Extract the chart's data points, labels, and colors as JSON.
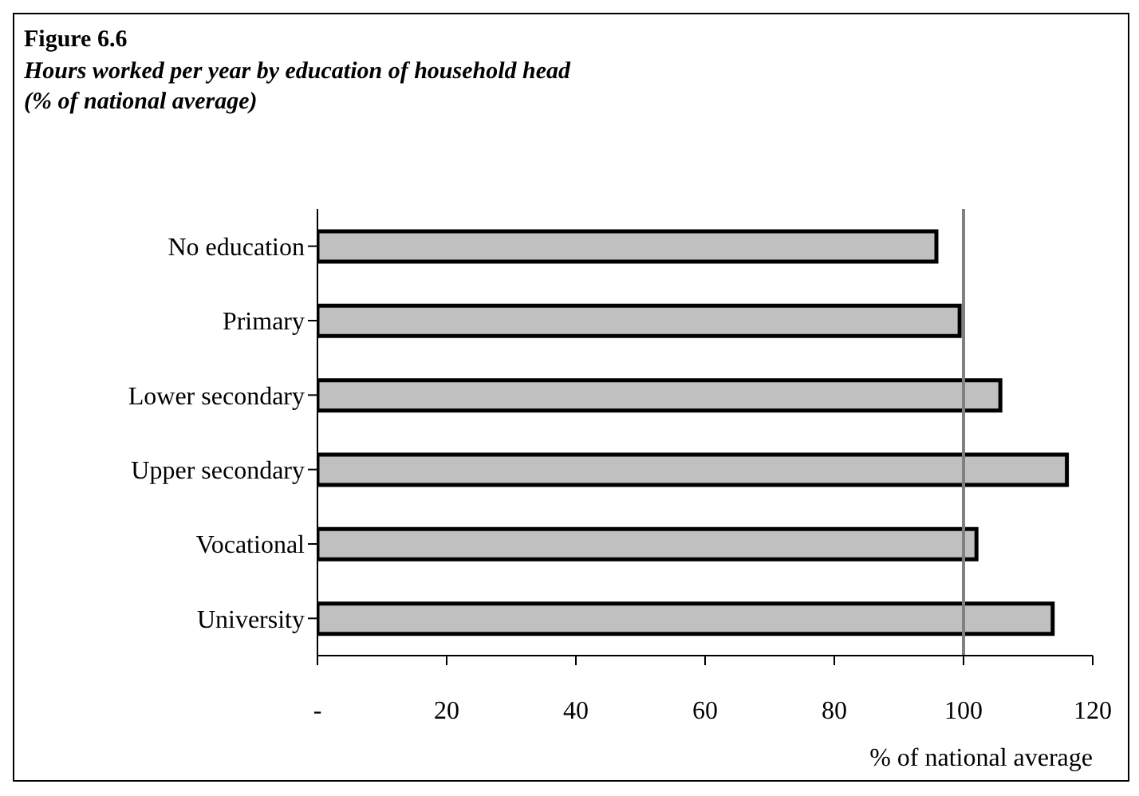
{
  "chart_data": {
    "type": "bar",
    "orientation": "horizontal",
    "title": "Figure 6.6",
    "subtitle": "Hours worked per year by education of household head\n(% of national average)",
    "xlabel": "% of national average",
    "categories": [
      "No education",
      "Primary",
      "Lower secondary",
      "Upper secondary",
      "Vocational",
      "University"
    ],
    "values": [
      95.8,
      99.4,
      105.7,
      116.0,
      102.0,
      113.8
    ],
    "color": "#c0c0c0",
    "xlim": [
      0,
      120
    ],
    "xticks": [
      {
        "value": 0,
        "label": "-"
      },
      20,
      40,
      60,
      80,
      100,
      120
    ],
    "ref_lines": [
      {
        "axis": "x",
        "value": 100,
        "color": "#808080"
      }
    ],
    "grid": false,
    "legend": false
  }
}
